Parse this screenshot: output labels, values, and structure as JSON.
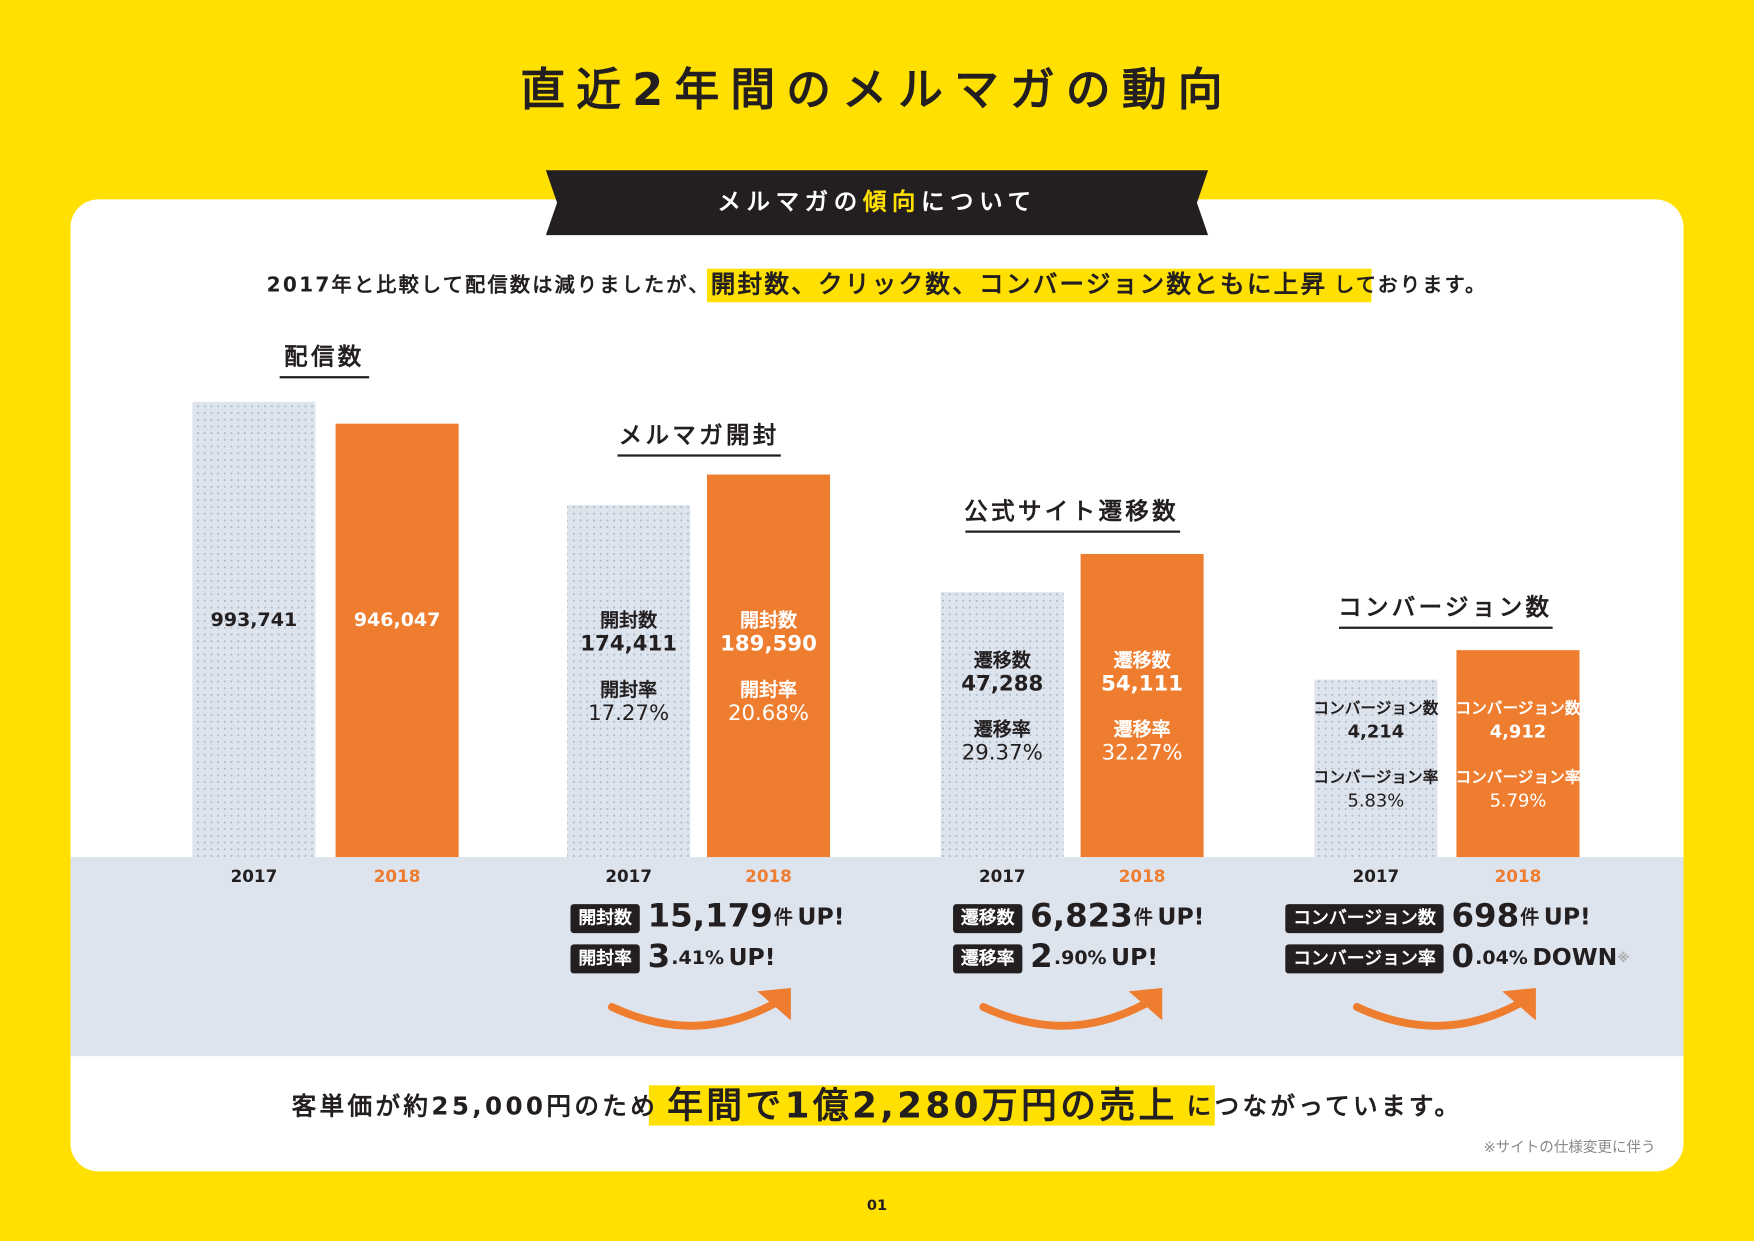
{
  "title": "直近2年間のメルマガの動向",
  "banner": {
    "before": "メルマガの",
    "highlight": "傾向",
    "after": "について"
  },
  "lead": {
    "before": "2017年と比較して配信数は減りましたが、",
    "highlight": "開封数、クリック数、コンバージョン数ともに上昇",
    "after": "しております。"
  },
  "chart_data": [
    {
      "type": "bar",
      "title": "配信数",
      "categories": [
        "2017",
        "2018"
      ],
      "values": [
        993741,
        946047
      ],
      "value_labels": [
        "993,741",
        "946,047"
      ],
      "colors": [
        "#dde4ed",
        "#ee7d2f"
      ]
    },
    {
      "type": "bar",
      "title": "メルマガ開封",
      "categories": [
        "2017",
        "2018"
      ],
      "values": [
        174411,
        189590
      ],
      "value_labels": [
        "174,411",
        "189,590"
      ],
      "count_label": "開封数",
      "rate_label": "開封率",
      "rate_labels": [
        "17.27%",
        "20.68%"
      ],
      "colors": [
        "#dde4ed",
        "#ee7d2f"
      ]
    },
    {
      "type": "bar",
      "title": "公式サイト遷移数",
      "categories": [
        "2017",
        "2018"
      ],
      "values": [
        47288,
        54111
      ],
      "value_labels": [
        "47,288",
        "54,111"
      ],
      "count_label": "遷移数",
      "rate_label": "遷移率",
      "rate_labels": [
        "29.37%",
        "32.27%"
      ],
      "colors": [
        "#dde4ed",
        "#ee7d2f"
      ]
    },
    {
      "type": "bar",
      "title": "コンバージョン数",
      "categories": [
        "2017",
        "2018"
      ],
      "values": [
        4214,
        4912
      ],
      "value_labels": [
        "4,214",
        "4,912"
      ],
      "count_label": "コンバージョン数",
      "rate_label": "コンバージョン率",
      "rate_labels": [
        "5.83%",
        "5.79%"
      ],
      "colors": [
        "#dde4ed",
        "#ee7d2f"
      ]
    }
  ],
  "summaries": [
    {
      "rows": [
        {
          "tag": "開封数",
          "big": "15,179",
          "small": "件",
          "status": "UP!"
        },
        {
          "tag": "開封率",
          "big": "3",
          "small": ".41%",
          "status": "UP!"
        }
      ]
    },
    {
      "rows": [
        {
          "tag": "遷移数",
          "big": "6,823",
          "small": "件",
          "status": "UP!"
        },
        {
          "tag": "遷移率",
          "big": "2",
          "small": ".90%",
          "status": "UP!"
        }
      ]
    },
    {
      "rows": [
        {
          "tag": "コンバージョン数",
          "big": "698",
          "small": "件",
          "status": "UP!"
        },
        {
          "tag": "コンバージョン率",
          "big": "0",
          "small": ".04%",
          "status": "DOWN",
          "mark": "※"
        }
      ]
    }
  ],
  "conclusion": {
    "before": "客単価が約25,000円のため",
    "highlight": "年間で1億2,280万円の売上",
    "after": "につながっています。"
  },
  "note": "※サイトの仕様変更に伴う",
  "page_number": "01"
}
